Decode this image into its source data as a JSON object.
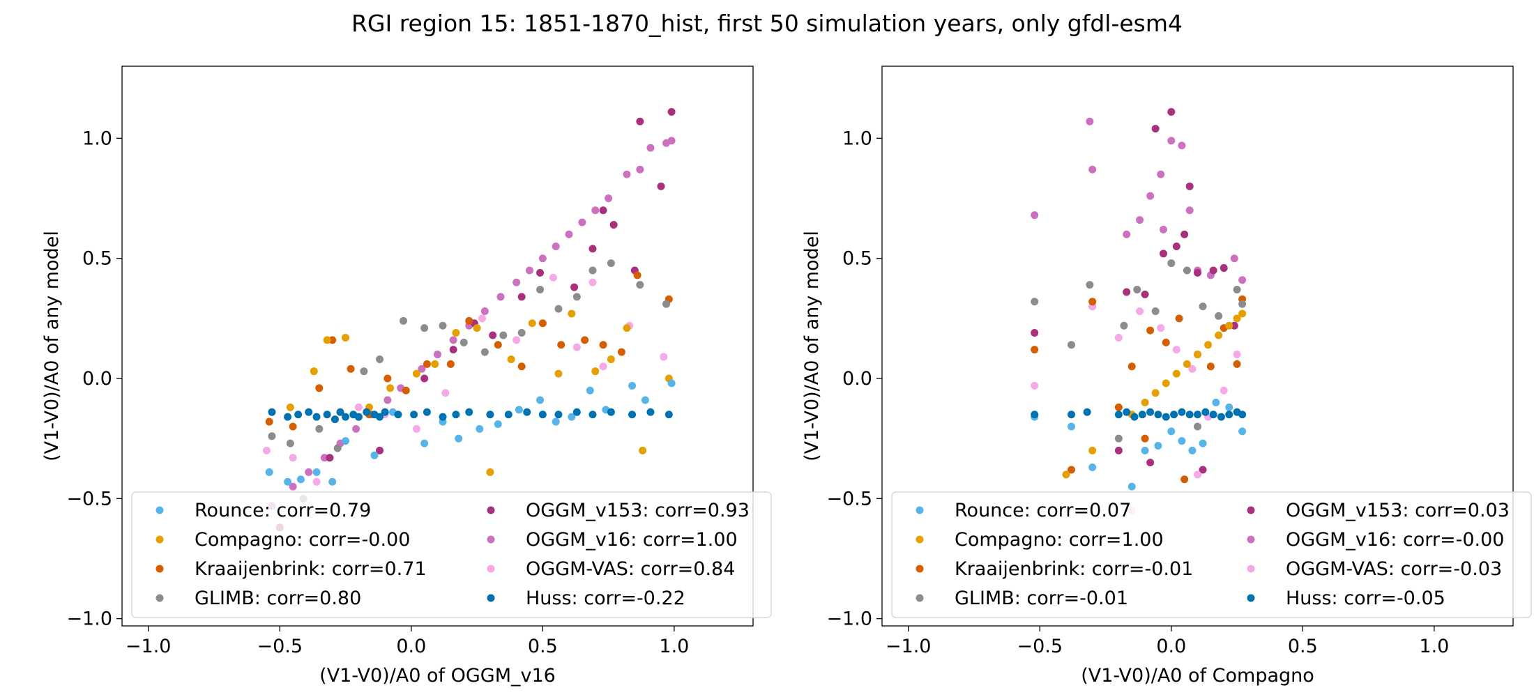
{
  "figure": {
    "suptitle": "RGI region 15: 1851-1870_hist, first 50 simulation years, only gfdl-esm4"
  },
  "colors": {
    "Rounce": "#56b4e9",
    "Compagno": "#e69f00",
    "Kraaijenbrink": "#d55e00",
    "GLIMB": "#8c8c8c",
    "OGGM_v153": "#a8307f",
    "OGGM_v16": "#cc71bf",
    "OGGM-VAS": "#f7a8e6",
    "Huss": "#0072b2"
  },
  "chart_data": [
    {
      "type": "scatter",
      "xlabel": "(V1-V0)/A0 of OGGM_v16",
      "ylabel": "(V1-V0)/A0 of any model",
      "xlim": [
        -1.1,
        1.3
      ],
      "ylim": [
        -1.03,
        1.3
      ],
      "xticks": [
        -1.0,
        -0.5,
        0.0,
        0.5,
        1.0
      ],
      "yticks": [
        -1.0,
        -0.5,
        0.0,
        0.5,
        1.0
      ],
      "xtick_labels": [
        "−1.0",
        "−0.5",
        "0.0",
        "0.5",
        "1.0"
      ],
      "ytick_labels": [
        "−1.0",
        "−0.5",
        "0.0",
        "0.5",
        "1.0"
      ],
      "legend_position": "lower-right",
      "legend": [
        "Rounce: corr=0.79",
        "Compagno: corr=-0.00",
        "Kraaijenbrink: corr=0.71",
        "GLIMB: corr=0.80",
        "OGGM_v153: corr=0.93",
        "OGGM_v16: corr=1.00",
        "OGGM-VAS: corr=0.84",
        "Huss: corr=-0.22"
      ],
      "series": [
        {
          "model": "OGGM_v16",
          "x": [
            -0.53,
            -0.45,
            -0.39,
            -0.33,
            -0.27,
            -0.21,
            -0.15,
            -0.09,
            -0.04,
            0.04,
            0.1,
            0.16,
            0.22,
            0.28,
            0.34,
            0.4,
            0.45,
            0.5,
            0.55,
            0.6,
            0.65,
            0.7,
            0.75,
            0.82,
            0.87,
            0.91,
            0.97,
            0.99
          ],
          "y": [
            -0.53,
            -0.45,
            -0.39,
            -0.33,
            -0.27,
            -0.21,
            -0.15,
            -0.09,
            -0.04,
            0.04,
            0.1,
            0.16,
            0.22,
            0.28,
            0.34,
            0.4,
            0.45,
            0.5,
            0.55,
            0.6,
            0.65,
            0.7,
            0.75,
            0.85,
            0.87,
            0.96,
            0.98,
            0.99
          ]
        },
        {
          "model": "OGGM_v153",
          "x": [
            -0.5,
            -0.31,
            -0.12,
            0.05,
            0.16,
            0.24,
            0.31,
            0.42,
            0.49,
            0.62,
            0.69,
            0.73,
            0.77,
            0.85,
            0.87,
            0.95,
            0.99
          ],
          "y": [
            -0.62,
            -0.33,
            -0.3,
            0.0,
            0.12,
            0.23,
            0.18,
            0.34,
            0.44,
            0.38,
            0.54,
            0.7,
            0.64,
            0.45,
            1.07,
            0.8,
            1.11
          ]
        },
        {
          "model": "OGGM-VAS",
          "x": [
            -0.55,
            -0.45,
            -0.36,
            -0.2,
            -0.1,
            0.02,
            0.13,
            0.27,
            0.4,
            0.54,
            0.63,
            0.69,
            0.73,
            0.83,
            0.96
          ],
          "y": [
            -0.3,
            -0.33,
            -0.43,
            -0.12,
            -0.15,
            -0.21,
            -0.06,
            0.25,
            0.16,
            0.42,
            0.13,
            0.4,
            0.05,
            0.22,
            0.09
          ]
        },
        {
          "model": "Kraaijenbrink",
          "x": [
            -0.54,
            -0.45,
            -0.35,
            -0.3,
            -0.23,
            -0.16,
            -0.09,
            -0.02,
            0.06,
            0.15,
            0.22,
            0.33,
            0.42,
            0.5,
            0.57,
            0.66,
            0.73,
            0.8,
            0.86,
            0.98
          ],
          "y": [
            -0.18,
            -0.2,
            -0.04,
            0.16,
            0.04,
            -0.15,
            0.0,
            -0.05,
            0.06,
            0.06,
            0.24,
            0.14,
            0.05,
            0.23,
            0.14,
            0.16,
            0.14,
            0.11,
            0.43,
            0.33
          ]
        },
        {
          "model": "Compagno",
          "x": [
            -0.46,
            -0.37,
            -0.32,
            -0.25,
            -0.16,
            -0.08,
            0.02,
            0.09,
            0.17,
            0.25,
            0.3,
            0.38,
            0.46,
            0.56,
            0.61,
            0.7,
            0.76,
            0.82,
            0.88,
            0.98
          ],
          "y": [
            -0.12,
            0.03,
            0.16,
            0.17,
            -0.12,
            -0.04,
            0.02,
            0.06,
            0.19,
            0.21,
            -0.39,
            0.08,
            0.23,
            0.02,
            0.27,
            0.03,
            0.08,
            0.21,
            -0.3,
            0.0
          ]
        },
        {
          "model": "GLIMB",
          "x": [
            -0.53,
            -0.46,
            -0.41,
            -0.35,
            -0.28,
            -0.18,
            -0.12,
            -0.03,
            0.05,
            0.12,
            0.2,
            0.28,
            0.35,
            0.42,
            0.49,
            0.56,
            0.63,
            0.69,
            0.76,
            0.87,
            0.97
          ],
          "y": [
            -0.24,
            -0.27,
            -0.5,
            -0.21,
            -0.29,
            0.03,
            0.08,
            0.24,
            0.21,
            0.22,
            0.15,
            0.11,
            0.18,
            0.19,
            0.37,
            0.29,
            0.34,
            0.45,
            0.48,
            0.39,
            0.31
          ]
        },
        {
          "model": "Rounce",
          "x": [
            -0.54,
            -0.47,
            -0.42,
            -0.36,
            -0.3,
            -0.25,
            -0.2,
            -0.14,
            -0.07,
            0.05,
            0.12,
            0.18,
            0.26,
            0.33,
            0.41,
            0.49,
            0.55,
            0.61,
            0.68,
            0.74,
            0.84,
            0.89,
            0.99
          ],
          "y": [
            -0.39,
            -0.43,
            -0.42,
            -0.39,
            -0.43,
            -0.26,
            -0.16,
            -0.32,
            -0.14,
            -0.27,
            -0.18,
            -0.25,
            -0.21,
            -0.19,
            -0.13,
            -0.09,
            -0.18,
            -0.16,
            -0.05,
            -0.13,
            -0.03,
            -0.09,
            -0.02
          ]
        },
        {
          "model": "Huss",
          "x": [
            -0.53,
            -0.47,
            -0.43,
            -0.39,
            -0.36,
            -0.32,
            -0.29,
            -0.27,
            -0.25,
            -0.22,
            -0.2,
            -0.17,
            -0.14,
            -0.12,
            -0.1,
            -0.05,
            0.01,
            0.06,
            0.12,
            0.17,
            0.22,
            0.3,
            0.37,
            0.44,
            0.5,
            0.56,
            0.63,
            0.69,
            0.76,
            0.84,
            0.91,
            0.98
          ],
          "y": [
            -0.14,
            -0.16,
            -0.15,
            -0.14,
            -0.16,
            -0.15,
            -0.17,
            -0.14,
            -0.16,
            -0.15,
            -0.16,
            -0.14,
            -0.15,
            -0.16,
            -0.14,
            -0.15,
            -0.15,
            -0.14,
            -0.16,
            -0.15,
            -0.14,
            -0.15,
            -0.15,
            -0.14,
            -0.15,
            -0.15,
            -0.14,
            -0.15,
            -0.14,
            -0.15,
            -0.14,
            -0.15
          ]
        }
      ]
    },
    {
      "type": "scatter",
      "xlabel": "(V1-V0)/A0 of Compagno",
      "ylabel": "(V1-V0)/A0 of any model",
      "xlim": [
        -1.1,
        1.3
      ],
      "ylim": [
        -1.03,
        1.3
      ],
      "xticks": [
        -1.0,
        -0.5,
        0.0,
        0.5,
        1.0
      ],
      "yticks": [
        -1.0,
        -0.5,
        0.0,
        0.5,
        1.0
      ],
      "xtick_labels": [
        "−1.0",
        "−0.5",
        "0.0",
        "0.5",
        "1.0"
      ],
      "ytick_labels": [
        "−1.0",
        "−0.5",
        "0.0",
        "0.5",
        "1.0"
      ],
      "legend_position": "lower-right",
      "legend": [
        "Rounce: corr=0.07",
        "Compagno: corr=1.00",
        "Kraaijenbrink: corr=-0.01",
        "GLIMB: corr=-0.01",
        "OGGM_v153: corr=0.03",
        "OGGM_v16: corr=-0.00",
        "OGGM-VAS: corr=-0.03",
        "Huss: corr=-0.05"
      ],
      "series": [
        {
          "model": "OGGM_v16",
          "x": [
            -0.52,
            -0.31,
            -0.3,
            -0.17,
            -0.12,
            -0.08,
            -0.04,
            -0.03,
            0.0,
            0.04,
            0.07,
            0.1,
            0.15,
            0.2,
            0.24,
            0.27
          ],
          "y": [
            0.68,
            1.07,
            0.87,
            0.6,
            0.66,
            0.76,
            0.85,
            0.62,
            0.99,
            0.97,
            0.7,
            0.45,
            0.43,
            0.46,
            0.5,
            0.41
          ]
        },
        {
          "model": "OGGM_v153",
          "x": [
            -0.52,
            -0.3,
            -0.17,
            -0.1,
            -0.06,
            -0.03,
            0.0,
            0.02,
            0.05,
            0.07,
            0.1,
            0.16,
            0.2,
            0.24,
            -0.2,
            -0.08,
            0.12
          ],
          "y": [
            0.19,
            0.3,
            0.36,
            0.35,
            1.04,
            0.52,
            1.11,
            0.55,
            0.6,
            0.8,
            0.44,
            0.45,
            0.46,
            0.22,
            -0.3,
            -0.35,
            -0.38
          ]
        },
        {
          "model": "OGGM-VAS",
          "x": [
            -0.52,
            -0.38,
            -0.3,
            -0.2,
            -0.12,
            -0.04,
            0.02,
            0.08,
            0.14,
            0.2,
            0.25,
            -0.15,
            0.1
          ],
          "y": [
            -0.03,
            -0.15,
            0.3,
            0.17,
            0.28,
            0.21,
            0.12,
            0.04,
            -0.16,
            -0.05,
            0.1,
            -0.55,
            -0.4
          ]
        },
        {
          "model": "Kraaijenbrink",
          "x": [
            -0.52,
            -0.38,
            -0.3,
            -0.2,
            -0.15,
            -0.08,
            -0.02,
            0.03,
            0.1,
            0.15,
            0.2,
            0.25,
            0.27,
            -0.1,
            0.05
          ],
          "y": [
            0.12,
            -0.38,
            0.32,
            -0.12,
            0.05,
            0.2,
            0.15,
            0.25,
            0.1,
            0.05,
            0.21,
            0.06,
            0.33,
            -0.25,
            -0.42
          ]
        },
        {
          "model": "GLIMB",
          "x": [
            -0.52,
            -0.38,
            -0.31,
            -0.18,
            -0.13,
            -0.06,
            0.0,
            0.06,
            0.12,
            0.18,
            0.25,
            0.27,
            -0.2,
            0.1
          ],
          "y": [
            0.32,
            0.14,
            0.39,
            0.22,
            0.37,
            0.28,
            0.48,
            0.45,
            0.3,
            0.26,
            0.37,
            0.31,
            -0.25,
            -0.2
          ]
        },
        {
          "model": "Compagno",
          "x": [
            -0.4,
            -0.3,
            -0.15,
            -0.1,
            -0.06,
            -0.02,
            0.02,
            0.06,
            0.1,
            0.14,
            0.18,
            0.22,
            0.25,
            0.27
          ],
          "y": [
            -0.4,
            -0.3,
            -0.15,
            -0.1,
            -0.06,
            -0.02,
            0.02,
            0.06,
            0.1,
            0.14,
            0.18,
            0.22,
            0.25,
            0.27
          ]
        },
        {
          "model": "Rounce",
          "x": [
            -0.52,
            -0.38,
            -0.3,
            -0.15,
            -0.1,
            -0.05,
            0.0,
            0.04,
            0.08,
            0.12,
            0.17,
            0.22,
            0.27
          ],
          "y": [
            -0.16,
            -0.2,
            -0.37,
            -0.45,
            -0.3,
            -0.28,
            -0.22,
            -0.26,
            -0.3,
            -0.27,
            -0.1,
            -0.12,
            -0.22
          ]
        },
        {
          "model": "Huss",
          "x": [
            -0.52,
            -0.38,
            -0.32,
            -0.2,
            -0.17,
            -0.14,
            -0.11,
            -0.08,
            -0.05,
            -0.02,
            0.01,
            0.04,
            0.07,
            0.1,
            0.13,
            0.16,
            0.19,
            0.22,
            0.25,
            0.27
          ],
          "y": [
            -0.15,
            -0.15,
            -0.14,
            -0.15,
            -0.14,
            -0.16,
            -0.15,
            -0.14,
            -0.15,
            -0.16,
            -0.15,
            -0.14,
            -0.15,
            -0.15,
            -0.14,
            -0.15,
            -0.16,
            -0.15,
            -0.14,
            -0.15
          ]
        }
      ]
    }
  ]
}
